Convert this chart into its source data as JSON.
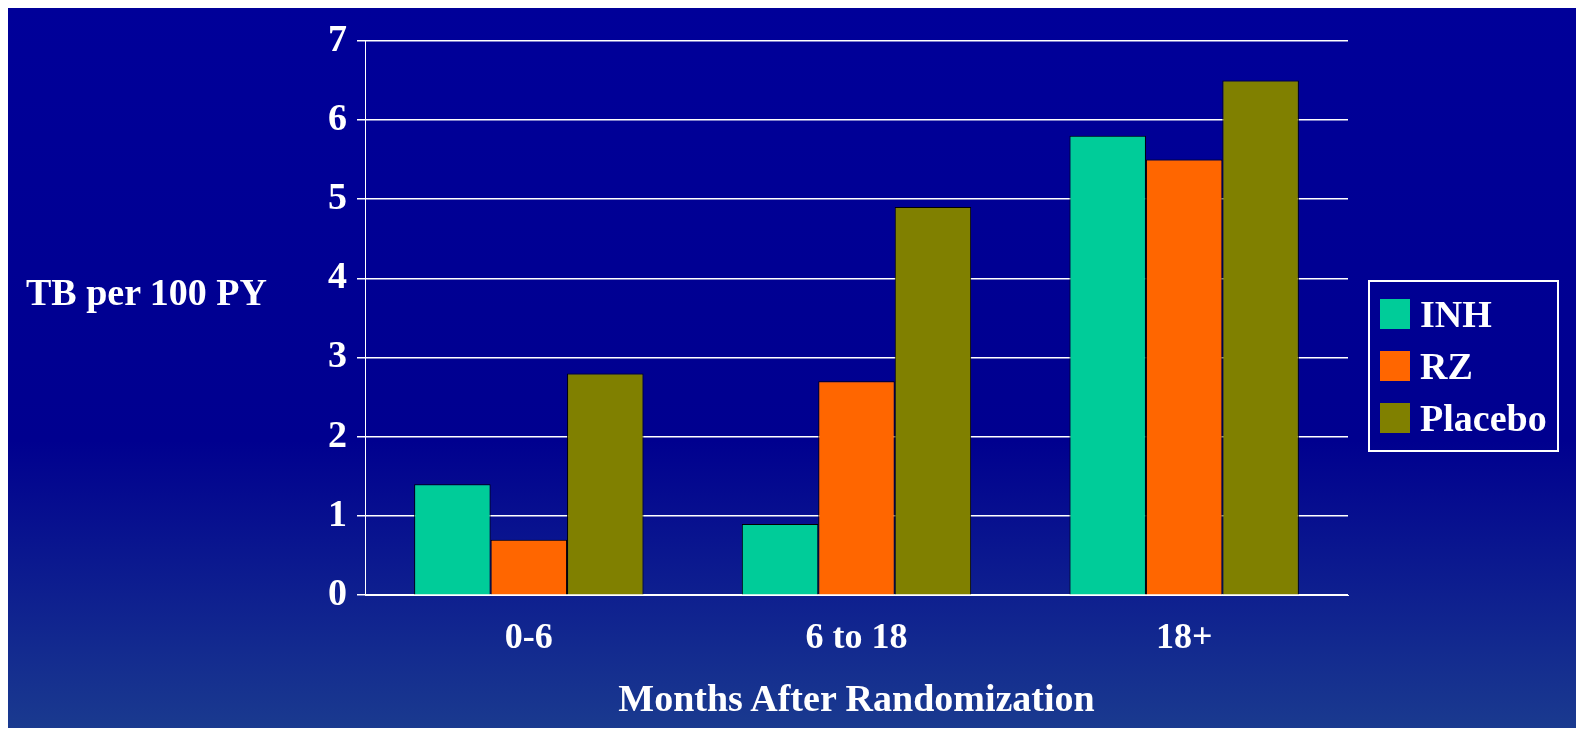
{
  "chart_data": {
    "type": "bar",
    "xlabel": "Months After Randomization",
    "ylabel": "TB per 100 PY",
    "categories": [
      "0-6",
      "6 to 18",
      "18+"
    ],
    "series": [
      {
        "name": "INH",
        "color": "#00cc99",
        "values": [
          1.4,
          0.9,
          5.8
        ]
      },
      {
        "name": "RZ",
        "color": "#ff6600",
        "values": [
          0.7,
          2.7,
          5.5
        ]
      },
      {
        "name": "Placebo",
        "color": "#808000",
        "values": [
          2.8,
          4.9,
          6.5
        ]
      }
    ],
    "ylim": [
      0,
      7
    ],
    "yticks": [
      0,
      1,
      2,
      3,
      4,
      5,
      6,
      7
    ],
    "grid": "y",
    "legend": "right"
  }
}
